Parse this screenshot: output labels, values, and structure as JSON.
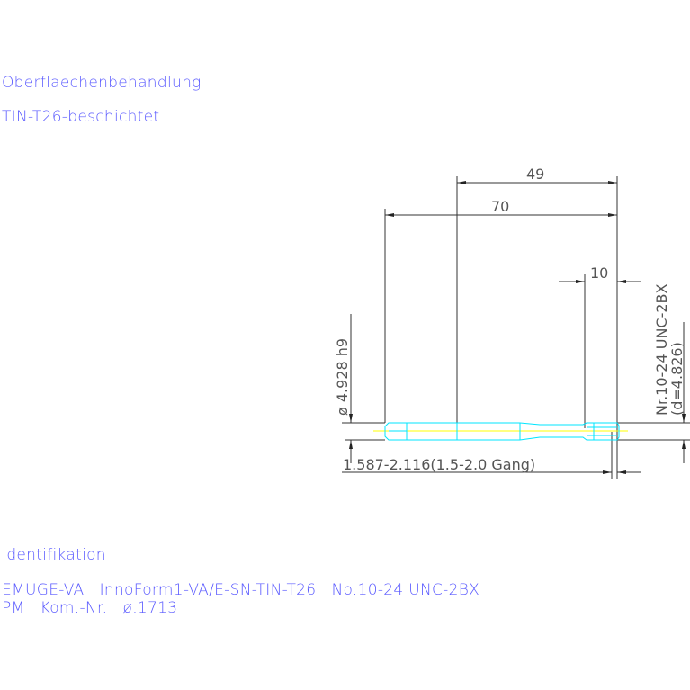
{
  "surface": {
    "label": "Oberflaechenbehandlung",
    "value": "TIN-T26-beschichtet"
  },
  "drawing": {
    "dim_49": "49",
    "dim_70": "70",
    "dim_10": "10",
    "shank_diameter": "ø 4.928 h9",
    "thread": "Nr.10-24 UNC-2BX",
    "thread_d": "(d=4.826)",
    "chamfer": "1.587-2.116(1.5-2.0 Gang)",
    "colors": {
      "text": "#5a5aff",
      "dimension": "#555555",
      "tool": "#00e5ff",
      "centerline": "#ffff00"
    }
  },
  "identification": {
    "label": "Identifikation",
    "line1": "EMUGE-VA   InnoForm1-VA/E-SN-TIN-T26   No.10-24 UNC-2BX",
    "line2": "PM   Kom.-Nr.   ø.1713"
  }
}
